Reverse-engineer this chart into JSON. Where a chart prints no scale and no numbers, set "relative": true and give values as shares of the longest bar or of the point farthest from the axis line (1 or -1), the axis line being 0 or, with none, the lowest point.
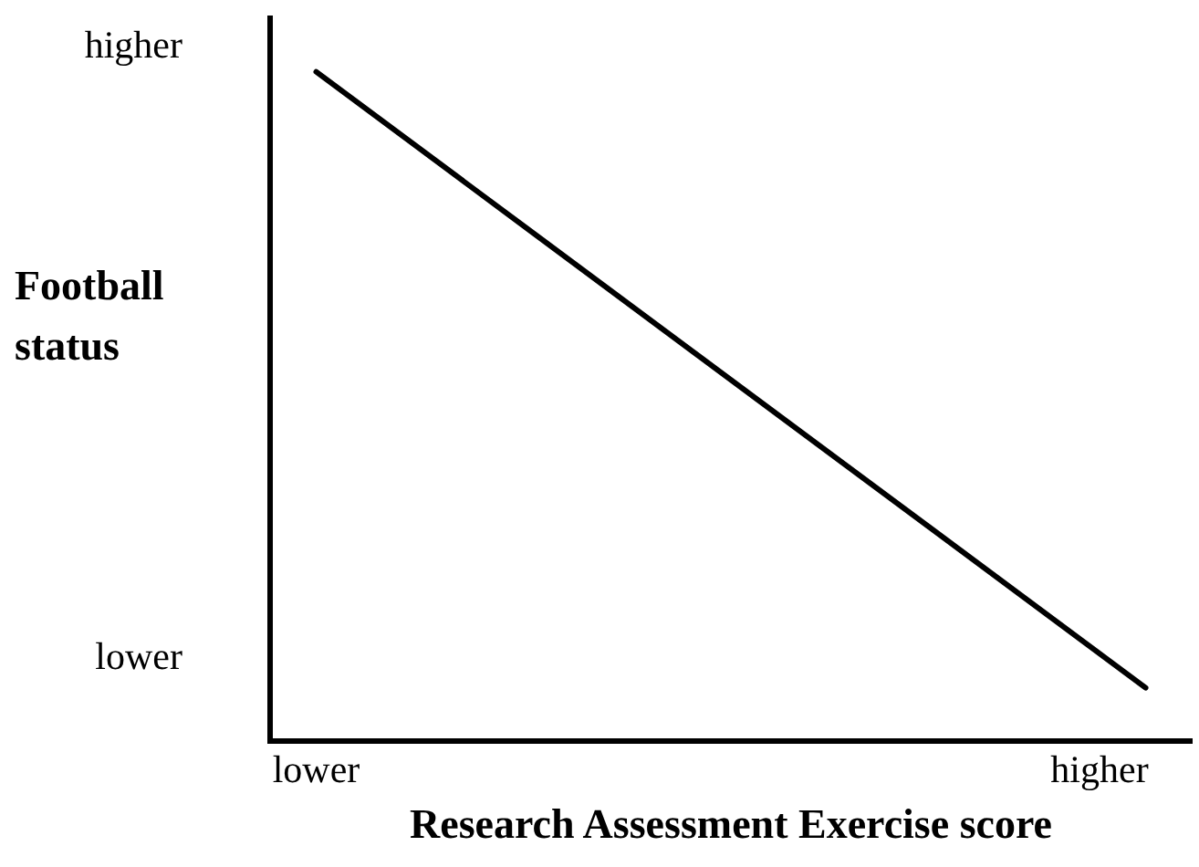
{
  "chart_data": {
    "type": "line",
    "xlabel": "Research Assessment Exercise score",
    "ylabel": "Football status",
    "relative": true,
    "categories": [
      null,
      "lower",
      null,
      null,
      null,
      null,
      null,
      null,
      null,
      null,
      null,
      null,
      null,
      null,
      null,
      null,
      null,
      null,
      "higher",
      null,
      null
    ],
    "values": [
      null,
      1,
      null,
      null,
      null,
      null,
      null,
      null,
      null,
      null,
      null,
      null,
      null,
      null,
      null,
      null,
      null,
      null,
      null,
      0.08,
      null
    ],
    "color": "#000000",
    "annotations": [
      "higher",
      "lower"
    ]
  }
}
